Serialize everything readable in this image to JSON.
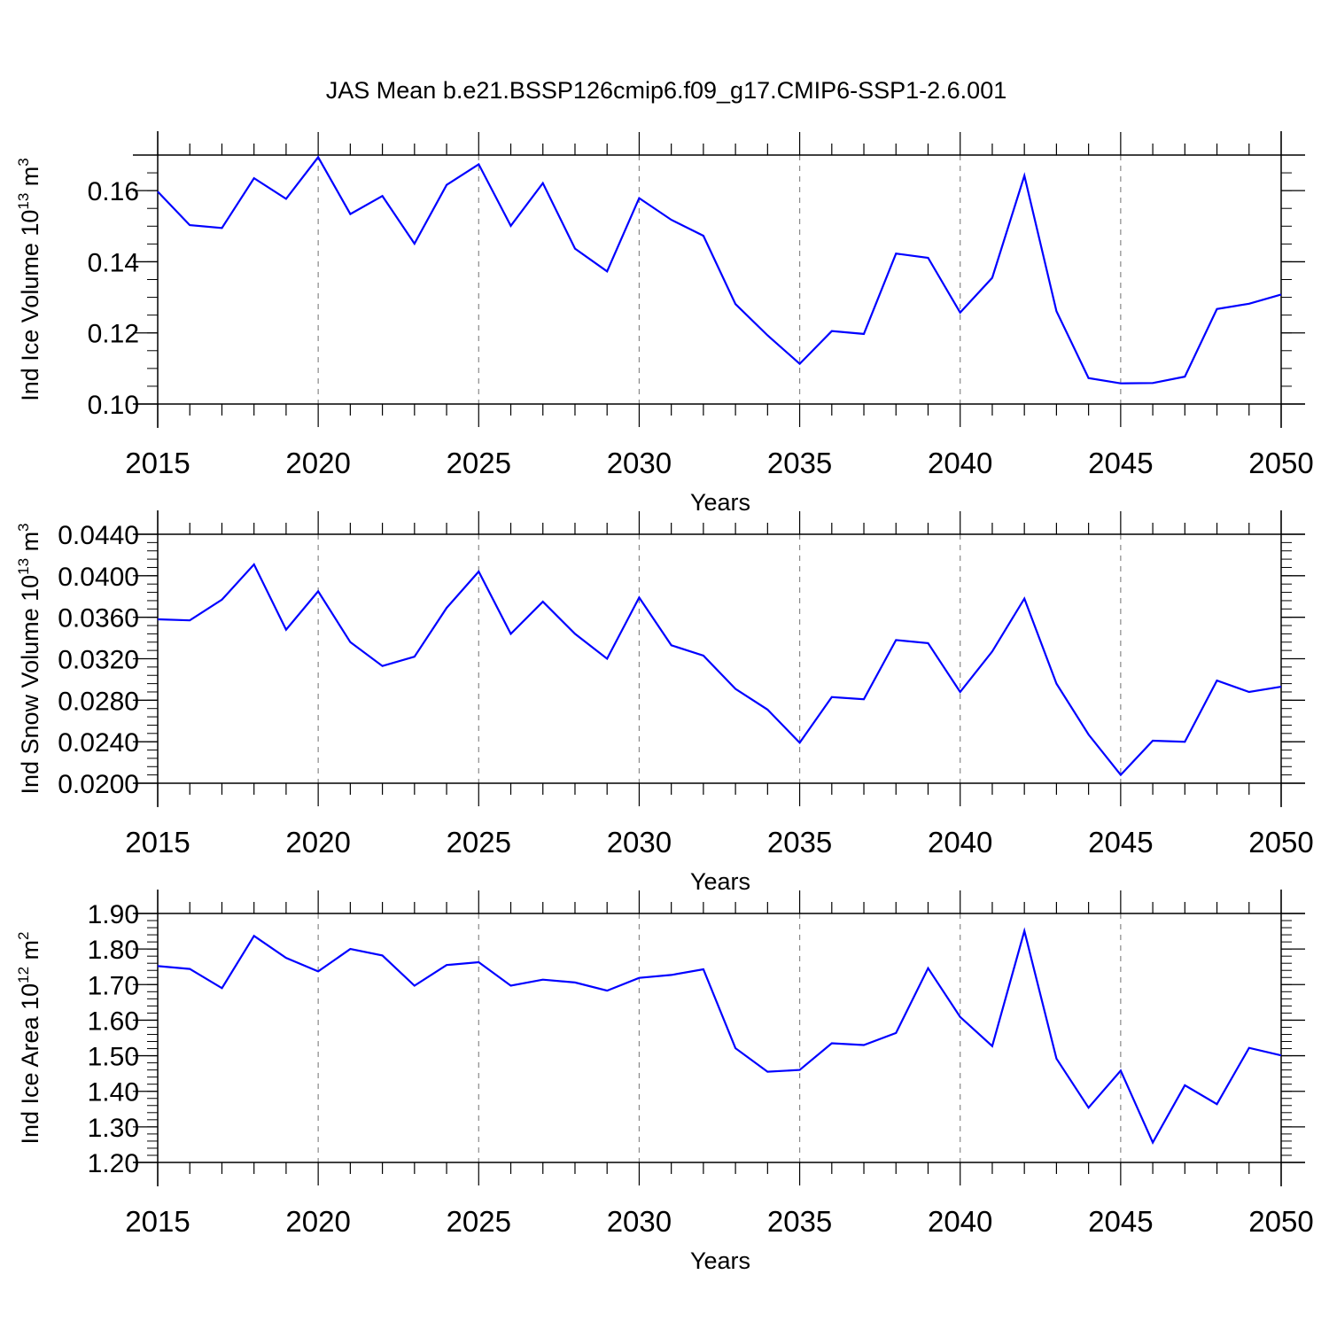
{
  "title": "JAS Mean b.e21.BSSP126cmip6.f09_g17.CMIP6-SSP1-2.6.001",
  "colors": {
    "line": "#0000ff",
    "axis": "#000000",
    "grid": "#888888",
    "background": "#ffffff"
  },
  "chart_data": [
    {
      "type": "line",
      "ylabel": {
        "text": "Ind Ice Volume 10",
        "sup": "13",
        "unit": " m",
        "unit_sup": "3"
      },
      "xlabel": "Years",
      "xlim": [
        2015,
        2050
      ],
      "ylim": [
        0.1,
        0.17
      ],
      "x_ticks": [
        "2015",
        "2020",
        "2025",
        "2030",
        "2035",
        "2040",
        "2045",
        "2050"
      ],
      "y_ticks": [
        {
          "v": 0.1,
          "label": "0.10"
        },
        {
          "v": 0.12,
          "label": "0.12"
        },
        {
          "v": 0.14,
          "label": "0.14"
        },
        {
          "v": 0.16,
          "label": "0.16"
        }
      ],
      "y_minor_step": 0.005,
      "grid": "vertical-dashed",
      "series": [
        {
          "name": "Ind Ice Volume",
          "x": [
            2015,
            2016,
            2017,
            2018,
            2019,
            2020,
            2021,
            2022,
            2023,
            2024,
            2025,
            2026,
            2027,
            2028,
            2029,
            2030,
            2031,
            2032,
            2033,
            2034,
            2035,
            2036,
            2037,
            2038,
            2039,
            2040,
            2041,
            2042,
            2043,
            2044,
            2045,
            2046,
            2047,
            2048,
            2049,
            2050
          ],
          "values": [
            0.1597,
            0.1503,
            0.1495,
            0.1635,
            0.1577,
            0.1694,
            0.1534,
            0.1585,
            0.1451,
            0.1616,
            0.1674,
            0.1501,
            0.1621,
            0.1437,
            0.1373,
            0.1579,
            0.1518,
            0.1473,
            0.1281,
            0.1193,
            0.1113,
            0.1205,
            0.1197,
            0.1423,
            0.1411,
            0.1257,
            0.1355,
            0.1642,
            0.1261,
            0.1073,
            0.1058,
            0.1059,
            0.1077,
            0.1267,
            0.1282,
            0.1308
          ]
        }
      ]
    },
    {
      "type": "line",
      "ylabel": {
        "text": "Ind Snow Volume 10",
        "sup": "13",
        "unit": " m",
        "unit_sup": "3"
      },
      "xlabel": "Years",
      "xlim": [
        2015,
        2050
      ],
      "ylim": [
        0.02,
        0.044
      ],
      "x_ticks": [
        "2015",
        "2020",
        "2025",
        "2030",
        "2035",
        "2040",
        "2045",
        "2050"
      ],
      "y_ticks": [
        {
          "v": 0.02,
          "label": "0.0200"
        },
        {
          "v": 0.024,
          "label": "0.0240"
        },
        {
          "v": 0.028,
          "label": "0.0280"
        },
        {
          "v": 0.032,
          "label": "0.0320"
        },
        {
          "v": 0.036,
          "label": "0.0360"
        },
        {
          "v": 0.04,
          "label": "0.0400"
        },
        {
          "v": 0.044,
          "label": "0.0440"
        }
      ],
      "y_minor_step": 0.0008,
      "grid": "vertical-dashed",
      "series": [
        {
          "name": "Ind Snow Volume",
          "x": [
            2015,
            2016,
            2017,
            2018,
            2019,
            2020,
            2021,
            2022,
            2023,
            2024,
            2025,
            2026,
            2027,
            2028,
            2029,
            2030,
            2031,
            2032,
            2033,
            2034,
            2035,
            2036,
            2037,
            2038,
            2039,
            2040,
            2041,
            2042,
            2043,
            2044,
            2045,
            2046,
            2047,
            2048,
            2049,
            2050
          ],
          "values": [
            0.0358,
            0.0357,
            0.0377,
            0.0411,
            0.0348,
            0.0385,
            0.0336,
            0.0313,
            0.0322,
            0.0369,
            0.0404,
            0.0344,
            0.0375,
            0.0344,
            0.032,
            0.0379,
            0.0333,
            0.0323,
            0.0291,
            0.0271,
            0.0239,
            0.0283,
            0.0281,
            0.0338,
            0.0335,
            0.0288,
            0.0327,
            0.0378,
            0.0296,
            0.0247,
            0.0208,
            0.0241,
            0.024,
            0.0299,
            0.0288,
            0.0293
          ]
        }
      ]
    },
    {
      "type": "line",
      "ylabel": {
        "text": "Ind Ice Area 10",
        "sup": "12",
        "unit": " m",
        "unit_sup": "2"
      },
      "xlabel": "Years",
      "xlim": [
        2015,
        2050
      ],
      "ylim": [
        1.2,
        1.9
      ],
      "x_ticks": [
        "2015",
        "2020",
        "2025",
        "2030",
        "2035",
        "2040",
        "2045",
        "2050"
      ],
      "y_ticks": [
        {
          "v": 1.2,
          "label": "1.20"
        },
        {
          "v": 1.3,
          "label": "1.30"
        },
        {
          "v": 1.4,
          "label": "1.40"
        },
        {
          "v": 1.5,
          "label": "1.50"
        },
        {
          "v": 1.6,
          "label": "1.60"
        },
        {
          "v": 1.7,
          "label": "1.70"
        },
        {
          "v": 1.8,
          "label": "1.80"
        },
        {
          "v": 1.9,
          "label": "1.90"
        }
      ],
      "y_minor_step": 0.02,
      "grid": "vertical-dashed",
      "series": [
        {
          "name": "Ind Ice Area",
          "x": [
            2015,
            2016,
            2017,
            2018,
            2019,
            2020,
            2021,
            2022,
            2023,
            2024,
            2025,
            2026,
            2027,
            2028,
            2029,
            2030,
            2031,
            2032,
            2033,
            2034,
            2035,
            2036,
            2037,
            2038,
            2039,
            2040,
            2041,
            2042,
            2043,
            2044,
            2045,
            2046,
            2047,
            2048,
            2049,
            2050
          ],
          "values": [
            1.752,
            1.744,
            1.69,
            1.837,
            1.775,
            1.737,
            1.8,
            1.782,
            1.697,
            1.755,
            1.763,
            1.697,
            1.714,
            1.706,
            1.683,
            1.719,
            1.727,
            1.743,
            1.521,
            1.455,
            1.46,
            1.535,
            1.53,
            1.564,
            1.746,
            1.609,
            1.527,
            1.851,
            1.492,
            1.354,
            1.458,
            1.256,
            1.417,
            1.364,
            1.522,
            1.501
          ]
        }
      ]
    }
  ]
}
